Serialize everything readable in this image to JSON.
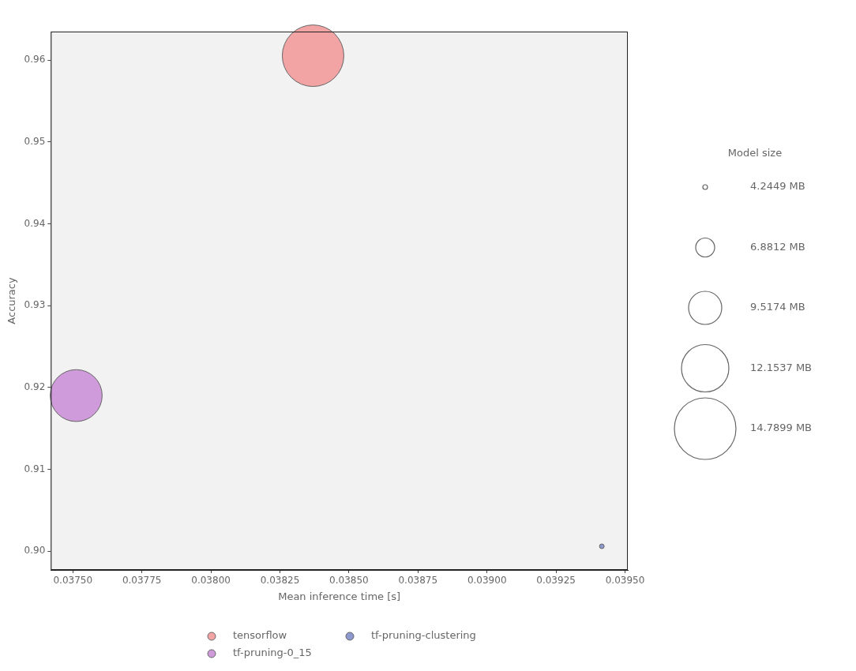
{
  "chart_data": {
    "type": "bubble",
    "x_label": "Mean inference time [s]",
    "y_label": "Accuracy",
    "xlim": [
      0.03742,
      0.03951
    ],
    "ylim": [
      0.89771,
      0.9635
    ],
    "xticks": [
      {
        "value": 0.0375,
        "label": "0.03750"
      },
      {
        "value": 0.03775,
        "label": "0.03775"
      },
      {
        "value": 0.038,
        "label": "0.03800"
      },
      {
        "value": 0.03825,
        "label": "0.03825"
      },
      {
        "value": 0.0385,
        "label": "0.03850"
      },
      {
        "value": 0.03875,
        "label": "0.03875"
      },
      {
        "value": 0.039,
        "label": "0.03900"
      },
      {
        "value": 0.03925,
        "label": "0.03925"
      },
      {
        "value": 0.0395,
        "label": "0.03950"
      }
    ],
    "yticks": [
      {
        "value": 0.9,
        "label": "0.90"
      },
      {
        "value": 0.91,
        "label": "0.91"
      },
      {
        "value": 0.92,
        "label": "0.92"
      },
      {
        "value": 0.93,
        "label": "0.93"
      },
      {
        "value": 0.94,
        "label": "0.94"
      },
      {
        "value": 0.95,
        "label": "0.95"
      },
      {
        "value": 0.96,
        "label": "0.96"
      }
    ],
    "grid": false,
    "legend": "bottom",
    "series": [
      {
        "name": "tensorflow",
        "color": "#f2a3a3",
        "x": [
          0.03837
        ],
        "values": [
          0.96055
        ],
        "model_size": [
          14.7899
        ]
      },
      {
        "name": "tf-pruning-0_15",
        "color": "#d09bdb",
        "x": [
          0.037512
        ],
        "values": [
          0.91902
        ],
        "model_size": [
          13.0
        ]
      },
      {
        "name": "tf-pruning-clustering",
        "color": "#8d98cf",
        "x": [
          0.039416
        ],
        "values": [
          0.9006
        ],
        "model_size": [
          4.2449
        ]
      }
    ],
    "size_legend": {
      "title": "Model size",
      "ticks": [
        {
          "value": 4.2449,
          "label": "4.2449 MB"
        },
        {
          "value": 6.8812,
          "label": "6.8812 MB"
        },
        {
          "value": 9.5174,
          "label": "9.5174 MB"
        },
        {
          "value": 12.1537,
          "label": "12.1537 MB"
        },
        {
          "value": 14.7899,
          "label": "14.7899 MB"
        }
      ]
    }
  }
}
